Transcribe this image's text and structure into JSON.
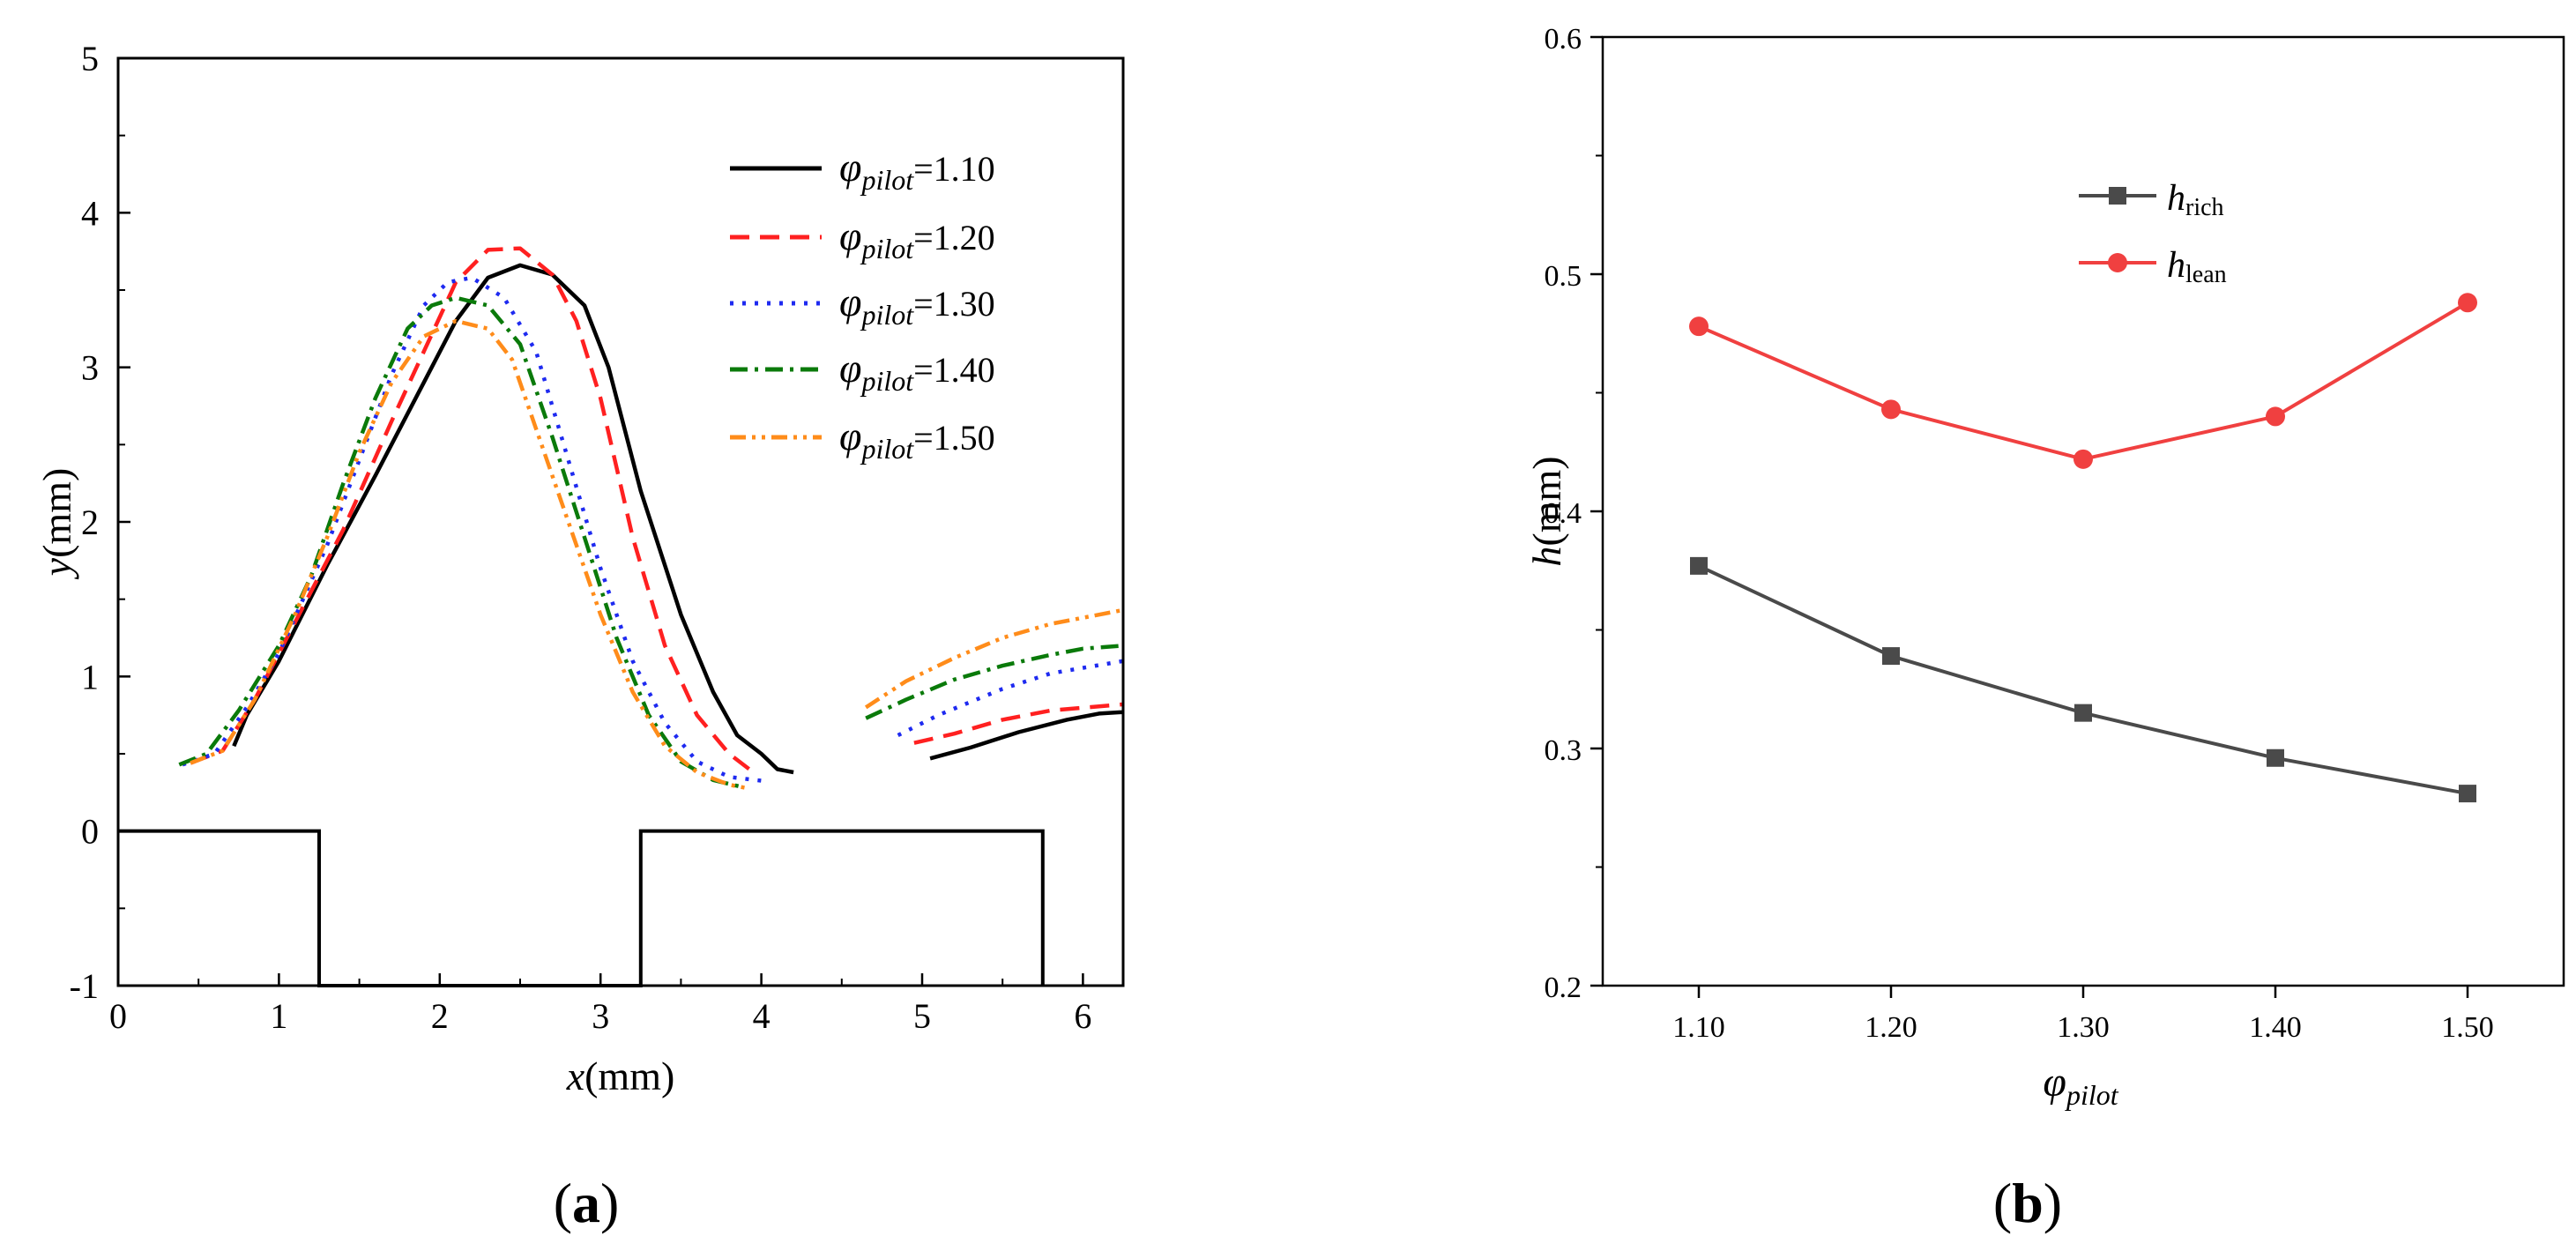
{
  "panels": {
    "a_label": "a",
    "b_label": "b"
  },
  "chart_data": [
    {
      "type": "line",
      "panel": "a",
      "title": "",
      "xlabel_var": "x",
      "xlabel_unit": "(mm)",
      "ylabel_var": "y",
      "ylabel_unit": "(mm)",
      "xlim": [
        0,
        6.25
      ],
      "ylim": [
        -1,
        5
      ],
      "xticks": [
        "0",
        "1",
        "2",
        "3",
        "4",
        "5",
        "6"
      ],
      "yticks": [
        "-1",
        "0",
        "1",
        "2",
        "3",
        "4",
        "5"
      ],
      "legend_position": "top-right",
      "legend_symbol": "φ",
      "legend_subscript": "pilot",
      "geometry_outline": [
        [
          0,
          0
        ],
        [
          1.25,
          0
        ],
        [
          1.25,
          -1
        ],
        [
          3.25,
          -1
        ],
        [
          3.25,
          0
        ],
        [
          5.75,
          0
        ],
        [
          5.75,
          -1
        ]
      ],
      "series": [
        {
          "name": "φpilot=1.10",
          "value": "=1.10",
          "color": "#000000",
          "style": "solid",
          "segments": [
            [
              [
                0.72,
                0.55
              ],
              [
                0.8,
                0.75
              ],
              [
                1.0,
                1.1
              ],
              [
                1.3,
                1.72
              ],
              [
                1.6,
                2.3
              ],
              [
                1.9,
                2.9
              ],
              [
                2.1,
                3.3
              ],
              [
                2.3,
                3.58
              ],
              [
                2.5,
                3.66
              ],
              [
                2.7,
                3.6
              ],
              [
                2.9,
                3.4
              ],
              [
                3.05,
                3.0
              ],
              [
                3.25,
                2.2
              ],
              [
                3.5,
                1.4
              ],
              [
                3.7,
                0.9
              ],
              [
                3.85,
                0.62
              ],
              [
                4.0,
                0.5
              ],
              [
                4.1,
                0.4
              ],
              [
                4.2,
                0.38
              ]
            ],
            [
              [
                5.05,
                0.47
              ],
              [
                5.3,
                0.54
              ],
              [
                5.6,
                0.64
              ],
              [
                5.9,
                0.72
              ],
              [
                6.1,
                0.76
              ],
              [
                6.25,
                0.77
              ]
            ]
          ]
        },
        {
          "name": "φpilot=1.20",
          "value": "=1.20",
          "color": "#FF2020",
          "style": "dashed",
          "segments": [
            [
              [
                0.45,
                0.44
              ],
              [
                0.65,
                0.52
              ],
              [
                0.85,
                0.85
              ],
              [
                1.1,
                1.35
              ],
              [
                1.4,
                1.95
              ],
              [
                1.7,
                2.65
              ],
              [
                1.9,
                3.1
              ],
              [
                2.1,
                3.55
              ],
              [
                2.3,
                3.76
              ],
              [
                2.5,
                3.77
              ],
              [
                2.7,
                3.6
              ],
              [
                2.85,
                3.3
              ],
              [
                3.0,
                2.8
              ],
              [
                3.2,
                1.9
              ],
              [
                3.4,
                1.2
              ],
              [
                3.6,
                0.75
              ],
              [
                3.8,
                0.5
              ],
              [
                3.95,
                0.38
              ]
            ],
            [
              [
                4.95,
                0.57
              ],
              [
                5.2,
                0.63
              ],
              [
                5.5,
                0.72
              ],
              [
                5.8,
                0.78
              ],
              [
                6.25,
                0.82
              ]
            ]
          ]
        },
        {
          "name": "φpilot=1.30",
          "value": "=1.30",
          "color": "#1E2AF0",
          "style": "dotted",
          "segments": [
            [
              [
                0.4,
                0.43
              ],
              [
                0.6,
                0.5
              ],
              [
                0.8,
                0.8
              ],
              [
                1.0,
                1.15
              ],
              [
                1.3,
                1.85
              ],
              [
                1.5,
                2.4
              ],
              [
                1.7,
                2.95
              ],
              [
                1.9,
                3.4
              ],
              [
                2.05,
                3.55
              ],
              [
                2.2,
                3.58
              ],
              [
                2.4,
                3.45
              ],
              [
                2.6,
                3.1
              ],
              [
                2.8,
                2.4
              ],
              [
                3.0,
                1.7
              ],
              [
                3.2,
                1.1
              ],
              [
                3.4,
                0.7
              ],
              [
                3.6,
                0.45
              ],
              [
                3.8,
                0.35
              ],
              [
                4.05,
                0.32
              ]
            ],
            [
              [
                4.85,
                0.62
              ],
              [
                5.1,
                0.75
              ],
              [
                5.5,
                0.92
              ],
              [
                5.8,
                1.02
              ],
              [
                6.25,
                1.1
              ]
            ]
          ]
        },
        {
          "name": "φpilot=1.40",
          "value": "=1.40",
          "color": "#0A7A0A",
          "style": "dashdot",
          "segments": [
            [
              [
                0.38,
                0.43
              ],
              [
                0.55,
                0.5
              ],
              [
                0.75,
                0.78
              ],
              [
                1.0,
                1.2
              ],
              [
                1.2,
                1.65
              ],
              [
                1.4,
                2.25
              ],
              [
                1.6,
                2.8
              ],
              [
                1.8,
                3.25
              ],
              [
                1.95,
                3.4
              ],
              [
                2.1,
                3.45
              ],
              [
                2.3,
                3.4
              ],
              [
                2.5,
                3.15
              ],
              [
                2.7,
                2.55
              ],
              [
                2.9,
                1.9
              ],
              [
                3.1,
                1.25
              ],
              [
                3.3,
                0.75
              ],
              [
                3.5,
                0.45
              ],
              [
                3.7,
                0.33
              ],
              [
                3.9,
                0.28
              ]
            ],
            [
              [
                4.65,
                0.73
              ],
              [
                4.9,
                0.85
              ],
              [
                5.2,
                0.98
              ],
              [
                5.5,
                1.07
              ],
              [
                5.8,
                1.14
              ],
              [
                6.0,
                1.18
              ],
              [
                6.25,
                1.2
              ]
            ]
          ]
        },
        {
          "name": "φpilot=1.50",
          "value": "=1.50",
          "color": "#FF8C1A",
          "style": "dashdotdot",
          "segments": [
            [
              [
                0.45,
                0.44
              ],
              [
                0.65,
                0.52
              ],
              [
                0.85,
                0.85
              ],
              [
                1.1,
                1.4
              ],
              [
                1.3,
                1.9
              ],
              [
                1.5,
                2.45
              ],
              [
                1.7,
                2.9
              ],
              [
                1.9,
                3.2
              ],
              [
                2.1,
                3.3
              ],
              [
                2.3,
                3.25
              ],
              [
                2.45,
                3.05
              ],
              [
                2.6,
                2.6
              ],
              [
                2.8,
                2.0
              ],
              [
                3.0,
                1.4
              ],
              [
                3.2,
                0.9
              ],
              [
                3.4,
                0.55
              ],
              [
                3.6,
                0.38
              ],
              [
                3.8,
                0.3
              ],
              [
                3.9,
                0.28
              ]
            ],
            [
              [
                4.65,
                0.8
              ],
              [
                4.9,
                0.97
              ],
              [
                5.2,
                1.12
              ],
              [
                5.5,
                1.25
              ],
              [
                5.8,
                1.34
              ],
              [
                6.05,
                1.39
              ],
              [
                6.25,
                1.43
              ]
            ]
          ]
        }
      ]
    },
    {
      "type": "line",
      "panel": "b",
      "title": "",
      "xlabel_symbol": "φ",
      "xlabel_subscript": "pilot",
      "ylabel_var": "h",
      "ylabel_unit": "(mm)",
      "categories": [
        "1.10",
        "1.20",
        "1.30",
        "1.40",
        "1.50"
      ],
      "x": [
        1.1,
        1.2,
        1.3,
        1.4,
        1.5
      ],
      "xlim": [
        1.05,
        1.55
      ],
      "ylim": [
        0.2,
        0.6
      ],
      "yticks": [
        "0.2",
        "0.3",
        "0.4",
        "0.5",
        "0.6"
      ],
      "legend_position": "upper-left",
      "series": [
        {
          "name": "h_rich",
          "var": "h",
          "sub": "rich",
          "color": "#4A4A4A",
          "marker": "square",
          "values": [
            0.377,
            0.339,
            0.315,
            0.296,
            0.281
          ]
        },
        {
          "name": "h_lean",
          "var": "h",
          "sub": "lean",
          "color": "#F04040",
          "marker": "circle",
          "values": [
            0.478,
            0.443,
            0.422,
            0.44,
            0.488
          ]
        }
      ]
    }
  ]
}
